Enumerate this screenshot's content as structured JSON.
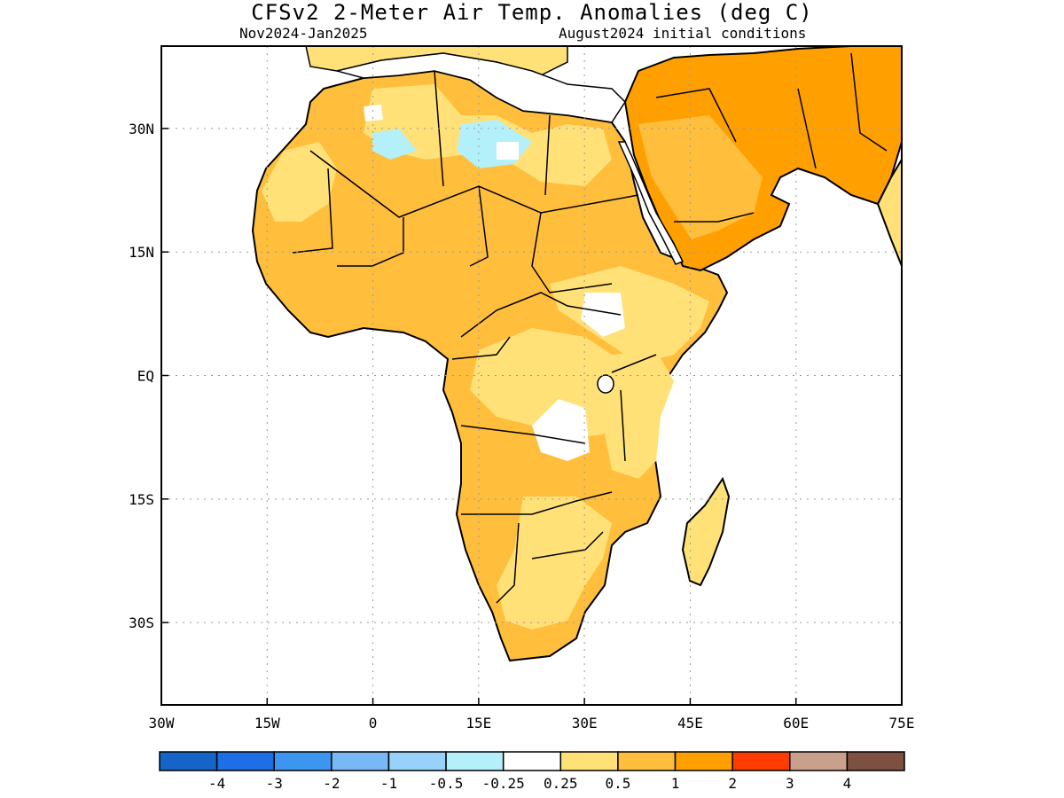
{
  "title": "CFSv2 2-Meter Air Temp. Anomalies (deg C)",
  "subtitle_left": "Nov2024-Jan2025",
  "subtitle_right": "August2024 initial conditions",
  "map": {
    "region": "Africa and Arabian Peninsula",
    "lon_range": [
      -30,
      75
    ],
    "lat_range": [
      -40,
      40
    ],
    "grid_lines": "dotted",
    "x_ticks": [
      {
        "lon": -30,
        "label": "30W"
      },
      {
        "lon": -15,
        "label": "15W"
      },
      {
        "lon": 0,
        "label": "0"
      },
      {
        "lon": 15,
        "label": "15E"
      },
      {
        "lon": 30,
        "label": "30E"
      },
      {
        "lon": 45,
        "label": "45E"
      },
      {
        "lon": 60,
        "label": "60E"
      },
      {
        "lon": 75,
        "label": "75E"
      }
    ],
    "y_ticks": [
      {
        "lat": 30,
        "label": "30N"
      },
      {
        "lat": 15,
        "label": "15N"
      },
      {
        "lat": 0,
        "label": "EQ"
      },
      {
        "lat": -15,
        "label": "15S"
      },
      {
        "lat": -30,
        "label": "30S"
      }
    ]
  },
  "colorbar": {
    "colors": [
      "#1565c8",
      "#1e6ee6",
      "#3c96f0",
      "#78b9f5",
      "#96d2fa",
      "#b4f0fa",
      "#ffffff",
      "#ffe178",
      "#ffbe3c",
      "#ffa000",
      "#ff3c00",
      "#c8a08c",
      "#7d5041"
    ],
    "labels": [
      "-4",
      "-3",
      "-2",
      "-1",
      "-0.5",
      "-0.25",
      "0.25",
      "0.5",
      "1",
      "2",
      "3",
      "4"
    ]
  }
}
